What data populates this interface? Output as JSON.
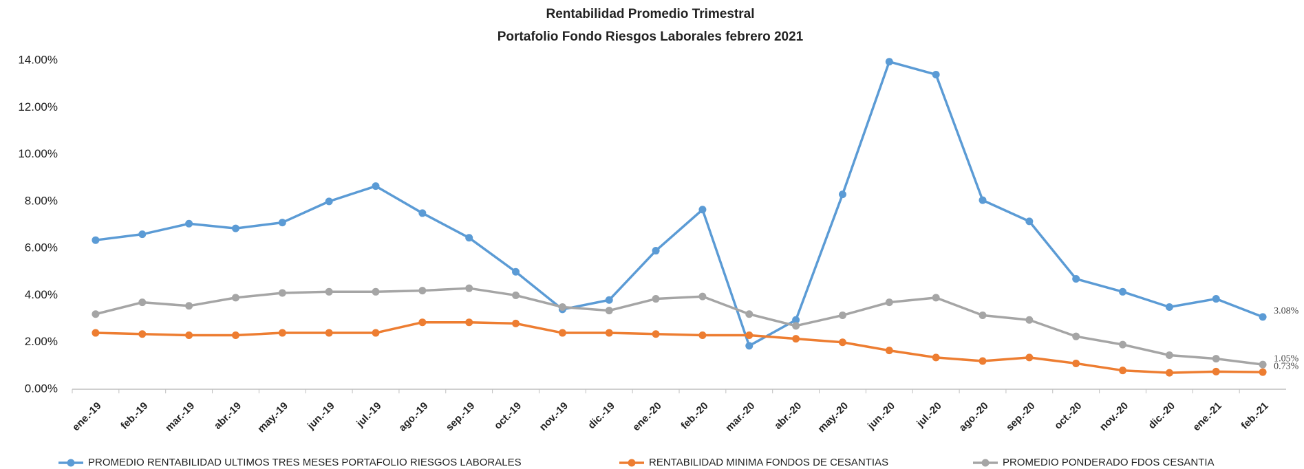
{
  "chart_data": {
    "type": "line",
    "title": "Rentabilidad Promedio Trimestral",
    "subtitle": "Portafolio Fondo Riesgos Laborales  febrero 2021",
    "categories": [
      "ene.-19",
      "feb.-19",
      "mar.-19",
      "abr.-19",
      "may.-19",
      "jun.-19",
      "jul.-19",
      "ago.-19",
      "sep.-19",
      "oct.-19",
      "nov.-19",
      "dic.-19",
      "ene.-20",
      "feb.-20",
      "mar.-20",
      "abr.-20",
      "may.-20",
      "jun.-20",
      "jul.-20",
      "ago.-20",
      "sep.-20",
      "oct.-20",
      "nov.-20",
      "dic.-20",
      "ene.-21",
      "feb.-21"
    ],
    "series": [
      {
        "name": "PROMEDIO RENTABILIDAD ULTIMOS TRES MESES PORTAFOLIO RIESGOS LABORALES",
        "color": "#5b9bd5",
        "values": [
          6.35,
          6.6,
          7.05,
          6.85,
          7.1,
          8.0,
          8.65,
          7.5,
          6.45,
          5.0,
          3.4,
          3.8,
          5.9,
          7.65,
          1.85,
          2.95,
          8.3,
          13.95,
          13.4,
          8.05,
          7.15,
          4.7,
          4.15,
          3.5,
          3.85,
          3.08
        ],
        "value_labels": [
          null,
          null,
          null,
          null,
          null,
          null,
          null,
          null,
          null,
          null,
          null,
          null,
          null,
          null,
          null,
          null,
          null,
          null,
          null,
          null,
          null,
          null,
          null,
          null,
          null,
          "3.08%"
        ]
      },
      {
        "name": "RENTABILIDAD MINIMA FONDOS DE CESANTIAS",
        "color": "#ed7d31",
        "values": [
          2.4,
          2.35,
          2.3,
          2.3,
          2.4,
          2.4,
          2.4,
          2.85,
          2.85,
          2.8,
          2.4,
          2.4,
          2.35,
          2.3,
          2.3,
          2.15,
          2.0,
          1.65,
          1.35,
          1.2,
          1.35,
          1.1,
          0.8,
          0.7,
          0.75,
          0.73
        ],
        "value_labels": [
          null,
          null,
          null,
          null,
          null,
          null,
          null,
          null,
          null,
          null,
          null,
          null,
          null,
          null,
          null,
          null,
          null,
          null,
          null,
          null,
          null,
          null,
          null,
          null,
          null,
          "0.73%"
        ]
      },
      {
        "name": "PROMEDIO PONDERADO  FDOS CESANTIA",
        "color": "#a5a5a5",
        "values": [
          3.2,
          3.7,
          3.55,
          3.9,
          4.1,
          4.15,
          4.15,
          4.2,
          4.3,
          4.0,
          3.5,
          3.35,
          3.85,
          3.95,
          3.2,
          2.7,
          3.15,
          3.7,
          3.9,
          3.15,
          2.95,
          2.25,
          1.9,
          1.45,
          1.3,
          1.05
        ],
        "value_labels": [
          null,
          null,
          null,
          null,
          null,
          null,
          null,
          null,
          null,
          null,
          null,
          null,
          null,
          null,
          null,
          null,
          null,
          null,
          null,
          null,
          null,
          null,
          null,
          null,
          null,
          "1.05%"
        ]
      }
    ],
    "ylim": [
      0,
      14
    ],
    "yticks": [
      {
        "value": 0,
        "label": "0.00%"
      },
      {
        "value": 2,
        "label": "2.00%"
      },
      {
        "value": 4,
        "label": "4.00%"
      },
      {
        "value": 6,
        "label": "6.00%"
      },
      {
        "value": 8,
        "label": "8.00%"
      },
      {
        "value": 10,
        "label": "10.00%"
      },
      {
        "value": 12,
        "label": "12.00%"
      },
      {
        "value": 14,
        "label": "14.00%"
      }
    ],
    "grid": false,
    "legend": "bottom"
  }
}
